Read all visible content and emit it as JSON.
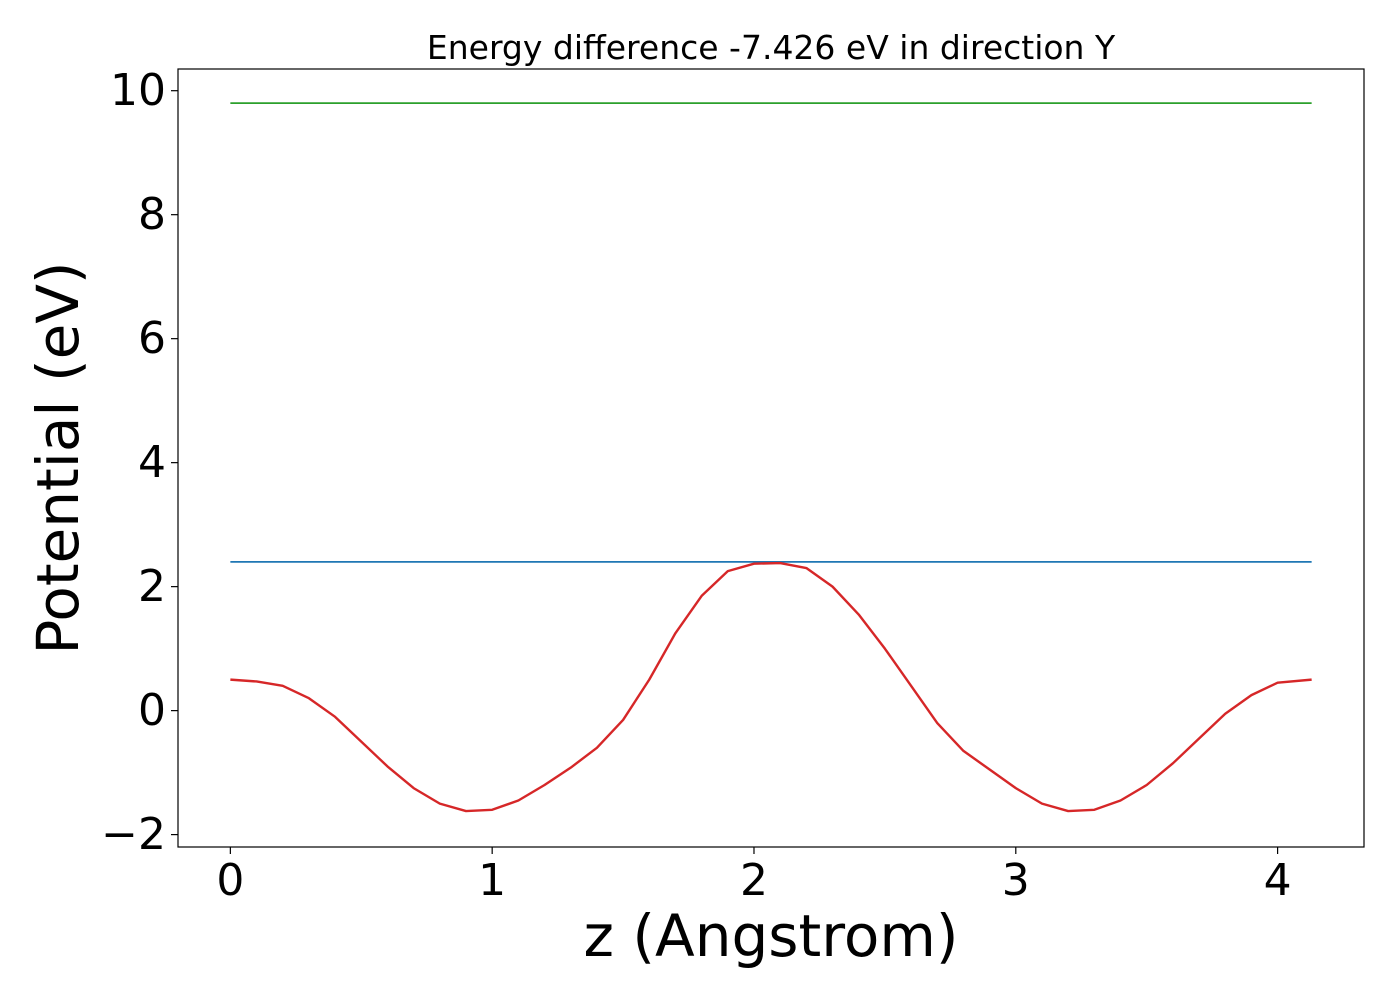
{
  "chart_data": {
    "type": "line",
    "title": "Energy difference -7.426 eV in direction Y",
    "xlabel": "z (Angstrom)",
    "ylabel": "Potential (eV)",
    "xlim": [
      -0.2,
      4.33
    ],
    "ylim": [
      -2.2,
      10.35
    ],
    "xticks": [
      0,
      1,
      2,
      3,
      4
    ],
    "xtick_labels": [
      "0",
      "1",
      "2",
      "3",
      "4"
    ],
    "yticks": [
      -2,
      0,
      2,
      4,
      6,
      8,
      10
    ],
    "ytick_labels": [
      "−2",
      "0",
      "2",
      "4",
      "6",
      "8",
      "10"
    ],
    "grid": false,
    "legend": "none",
    "series": [
      {
        "color": "#2ca02c",
        "x": [
          0,
          4.13
        ],
        "y": [
          9.8,
          9.8
        ]
      },
      {
        "color": "#1f77b4",
        "x": [
          0,
          4.13
        ],
        "y": [
          2.4,
          2.4
        ]
      },
      {
        "color": "#d62728",
        "x": [
          0,
          0.1,
          0.2,
          0.3,
          0.4,
          0.5,
          0.6,
          0.7,
          0.8,
          0.9,
          1.0,
          1.1,
          1.2,
          1.3,
          1.4,
          1.5,
          1.6,
          1.7,
          1.8,
          1.9,
          2.0,
          2.1,
          2.2,
          2.3,
          2.4,
          2.5,
          2.6,
          2.7,
          2.8,
          2.9,
          3.0,
          3.1,
          3.2,
          3.3,
          3.4,
          3.5,
          3.6,
          3.7,
          3.8,
          3.9,
          4.0,
          4.13
        ],
        "y": [
          0.5,
          0.47,
          0.4,
          0.2,
          -0.1,
          -0.5,
          -0.9,
          -1.25,
          -1.5,
          -1.62,
          -1.6,
          -1.45,
          -1.2,
          -0.92,
          -0.6,
          -0.15,
          0.5,
          1.25,
          1.85,
          2.25,
          2.37,
          2.38,
          2.3,
          2.0,
          1.55,
          1.0,
          0.4,
          -0.2,
          -0.65,
          -0.95,
          -1.25,
          -1.5,
          -1.62,
          -1.6,
          -1.45,
          -1.2,
          -0.85,
          -0.45,
          -0.05,
          0.25,
          0.45,
          0.5
        ]
      }
    ]
  }
}
